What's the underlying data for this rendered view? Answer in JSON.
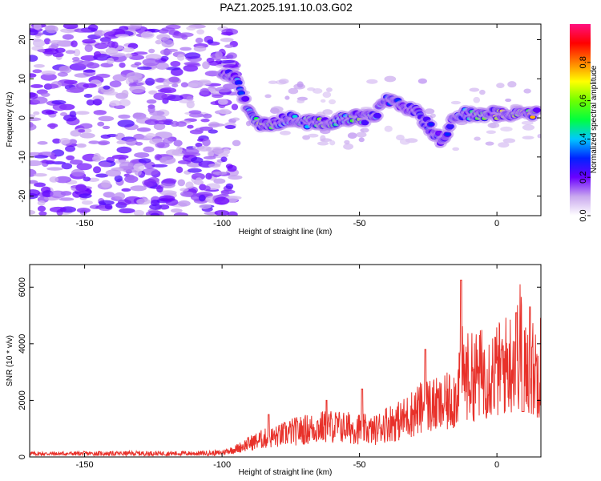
{
  "title": "PAZ1.2025.191.10.03.G02",
  "colors": {
    "snr_line": "#e8312a",
    "frame": "#000000"
  },
  "chart_data": [
    {
      "type": "heatmap",
      "xlabel": "Height of straight line (km)",
      "ylabel": "Frequency (Hz)",
      "xlim": [
        -170,
        16
      ],
      "ylim": [
        -25,
        24
      ],
      "x_ticks": [
        "-150",
        "-100",
        "-50",
        "0"
      ],
      "x_tick_values": [
        -150,
        -100,
        -50,
        0
      ],
      "y_ticks": [
        "20",
        "10",
        "0",
        "-10",
        "-20"
      ],
      "y_tick_values": [
        20,
        10,
        0,
        -10,
        -20
      ],
      "colorbar": {
        "label": "Normalized spectral amplitude",
        "range": [
          0,
          1
        ],
        "ticks": [
          "0.0",
          "0.2",
          "0.4",
          "0.6",
          "0.8"
        ],
        "tick_values": [
          0.0,
          0.2,
          0.4,
          0.6,
          0.8
        ]
      },
      "ridge": {
        "x": [
          -100,
          -95,
          -90,
          -85,
          -80,
          -75,
          -70,
          -65,
          -60,
          -55,
          -50,
          -45,
          -40,
          -35,
          -30,
          -25,
          -20,
          -15,
          -10,
          -5,
          0,
          5,
          10,
          15
        ],
        "freq": [
          11,
          10,
          1,
          -2,
          -1,
          0,
          -1,
          -1,
          -1,
          0,
          0,
          0,
          5,
          3,
          2,
          -2,
          -6,
          1,
          1,
          1,
          1,
          1,
          1,
          1
        ],
        "amplitude": [
          0.3,
          0.35,
          0.4,
          0.75,
          0.5,
          0.45,
          0.5,
          0.7,
          0.55,
          0.5,
          0.65,
          0.5,
          0.35,
          0.3,
          0.3,
          0.3,
          0.25,
          0.4,
          0.45,
          0.6,
          0.85,
          0.75,
          0.7,
          0.8
        ]
      }
    },
    {
      "type": "line",
      "xlabel": "Height of straight line (km)",
      "ylabel": "SNR (10 * v/v)",
      "xlim": [
        -170,
        16
      ],
      "ylim": [
        0,
        6800
      ],
      "x_ticks": [
        "-150",
        "-100",
        "-50",
        "0"
      ],
      "x_tick_values": [
        -150,
        -100,
        -50,
        0
      ],
      "y_ticks": [
        "0",
        "2000",
        "4000",
        "6000"
      ],
      "y_tick_values": [
        0,
        2000,
        4000,
        6000
      ],
      "series": [
        {
          "x": [
            -170,
            -160,
            -150,
            -140,
            -130,
            -120,
            -110,
            -100,
            -95,
            -90,
            -85,
            -80,
            -75,
            -70,
            -65,
            -60,
            -55,
            -50,
            -45,
            -40,
            -35,
            -30,
            -25,
            -20,
            -15,
            -13,
            -10,
            -5,
            0,
            5,
            8,
            9,
            10,
            12,
            15,
            16
          ],
          "y": [
            150,
            150,
            160,
            160,
            170,
            170,
            170,
            200,
            350,
            600,
            800,
            900,
            1100,
            1200,
            1300,
            1350,
            1300,
            1250,
            1150,
            1500,
            1600,
            2000,
            2300,
            2200,
            2700,
            3800,
            3500,
            3700,
            3800,
            4200,
            4600,
            5500,
            3800,
            4000,
            3700,
            4200
          ],
          "peak_x": [
            -83,
            -62,
            -49,
            -26,
            -13,
            7,
            12,
            16
          ],
          "peak_y": [
            1500,
            2000,
            2400,
            3800,
            6250,
            5100,
            5300,
            4900
          ]
        }
      ]
    }
  ]
}
